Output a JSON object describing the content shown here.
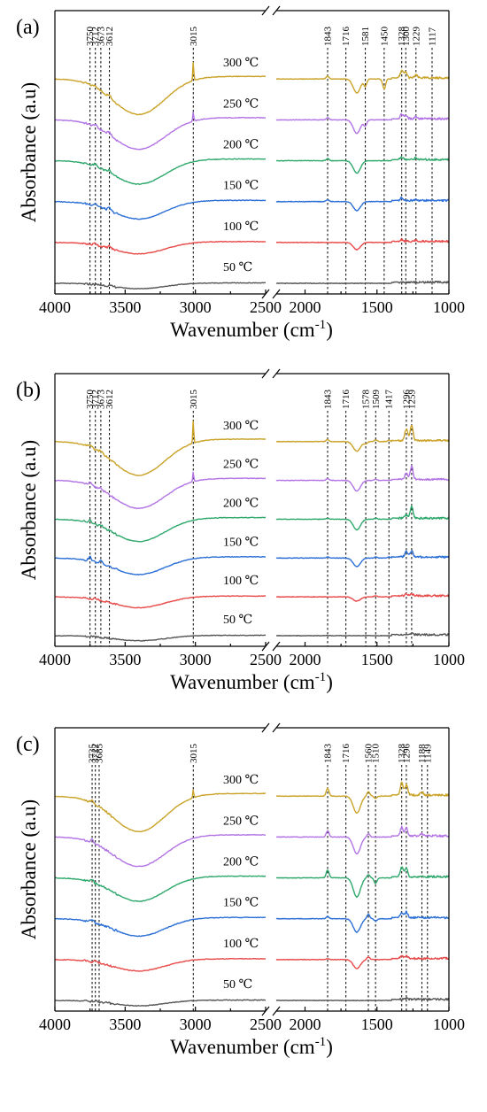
{
  "chart_data": [
    {
      "type": "line",
      "panel_label": "(a)",
      "xlabel": "Wavenumber (cm",
      "xlabel_sup": "-1",
      "xlabel_close": ")",
      "ylabel": "Absorbance (a.u)",
      "x_axis": "reversed, broken between 2500 and 2200",
      "x_segments": [
        [
          4000,
          2500
        ],
        [
          2200,
          1000
        ]
      ],
      "x_ticks": [
        4000,
        3500,
        3000,
        2500,
        2000,
        1500,
        1000
      ],
      "x_tick_labels": [
        "4000",
        "3500",
        "3000",
        "2500",
        "2000",
        "1500",
        "1000"
      ],
      "grid": false,
      "legend": "inline labels",
      "peak_labels": [
        3750,
        3712,
        3673,
        3612,
        3015,
        1843,
        1716,
        1581,
        1450,
        1328,
        1300,
        1229,
        1117
      ],
      "series": [
        {
          "name": "300 ℃",
          "color": "#c9a227",
          "offset": 5,
          "peaks": [
            [
              3712,
              0.1
            ],
            [
              3612,
              0.14
            ],
            [
              3015,
              0.85
            ],
            [
              1843,
              0.12
            ],
            [
              1640,
              -0.62
            ],
            [
              1581,
              -0.3
            ],
            [
              1450,
              -0.45
            ],
            [
              1328,
              0.32
            ],
            [
              1300,
              0.25
            ],
            [
              1229,
              0.12
            ]
          ]
        },
        {
          "name": "250 ℃",
          "color": "#b274e4",
          "offset": 4,
          "peaks": [
            [
              3712,
              0.1
            ],
            [
              3612,
              0.14
            ],
            [
              3015,
              0.42
            ],
            [
              1843,
              0.1
            ],
            [
              1640,
              -0.6
            ],
            [
              1581,
              -0.25
            ],
            [
              1328,
              0.2
            ],
            [
              1300,
              0.15
            ],
            [
              1229,
              0.1
            ]
          ]
        },
        {
          "name": "200 ℃",
          "color": "#2ea86b",
          "offset": 3,
          "peaks": [
            [
              3712,
              0.1
            ],
            [
              3612,
              0.12
            ],
            [
              1843,
              0.1
            ],
            [
              1640,
              -0.55
            ],
            [
              1328,
              0.12
            ],
            [
              1229,
              0.08
            ]
          ]
        },
        {
          "name": "150 ℃",
          "color": "#2b6fd6",
          "offset": 2,
          "peaks": [
            [
              3712,
              0.1
            ],
            [
              3612,
              0.12
            ],
            [
              1843,
              0.08
            ],
            [
              1640,
              -0.4
            ],
            [
              1328,
              0.12
            ],
            [
              1229,
              0.06
            ]
          ]
        },
        {
          "name": "100 ℃",
          "color": "#e84a4a",
          "offset": 1,
          "peaks": [
            [
              3712,
              0.1
            ],
            [
              3612,
              0.1
            ],
            [
              1640,
              -0.32
            ],
            [
              1328,
              0.08
            ],
            [
              1229,
              0.05
            ]
          ]
        },
        {
          "name": "50 ℃",
          "color": "#555555",
          "offset": 0,
          "peaks": [
            [
              3612,
              0.02
            ]
          ]
        }
      ]
    },
    {
      "type": "line",
      "panel_label": "(b)",
      "xlabel": "Wavenumber (cm",
      "xlabel_sup": "-1",
      "xlabel_close": ")",
      "ylabel": "Absorbance (a.u)",
      "x_axis": "reversed, broken between 2500 and 2200",
      "x_segments": [
        [
          4000,
          2500
        ],
        [
          2200,
          1000
        ]
      ],
      "x_ticks": [
        4000,
        3500,
        3000,
        2500,
        2000,
        1500,
        1000
      ],
      "x_tick_labels": [
        "4000",
        "3500",
        "3000",
        "2500",
        "2000",
        "1500",
        "1000"
      ],
      "grid": false,
      "legend": "inline labels",
      "peak_labels": [
        3750,
        3712,
        3673,
        3612,
        3015,
        1843,
        1716,
        1578,
        1509,
        1417,
        1296,
        1259
      ],
      "series": [
        {
          "name": "300 ℃",
          "color": "#c9a227",
          "offset": 5,
          "peaks": [
            [
              3750,
              0.12
            ],
            [
              3673,
              0.1
            ],
            [
              3015,
              1.05
            ],
            [
              1843,
              0.1
            ],
            [
              1640,
              -0.45
            ],
            [
              1578,
              -0.1
            ],
            [
              1509,
              0.08
            ],
            [
              1417,
              0.06
            ],
            [
              1296,
              0.55
            ],
            [
              1259,
              0.7
            ]
          ]
        },
        {
          "name": "250 ℃",
          "color": "#b274e4",
          "offset": 4,
          "peaks": [
            [
              3750,
              0.1
            ],
            [
              3673,
              0.1
            ],
            [
              3015,
              0.45
            ],
            [
              1843,
              0.08
            ],
            [
              1640,
              -0.5
            ],
            [
              1509,
              0.06
            ],
            [
              1296,
              0.3
            ],
            [
              1259,
              0.6
            ]
          ]
        },
        {
          "name": "200 ℃",
          "color": "#2ea86b",
          "offset": 3,
          "peaks": [
            [
              3750,
              0.12
            ],
            [
              3673,
              0.08
            ],
            [
              1843,
              0.05
            ],
            [
              1640,
              -0.5
            ],
            [
              1509,
              0.05
            ],
            [
              1296,
              0.15
            ],
            [
              1259,
              0.55
            ]
          ]
        },
        {
          "name": "150 ℃",
          "color": "#2b6fd6",
          "offset": 2,
          "peaks": [
            [
              3750,
              0.18
            ],
            [
              3673,
              0.12
            ],
            [
              1843,
              0.05
            ],
            [
              1640,
              -0.4
            ],
            [
              1509,
              0.05
            ],
            [
              1417,
              0.05
            ],
            [
              1296,
              0.25
            ],
            [
              1259,
              0.3
            ]
          ]
        },
        {
          "name": "100 ℃",
          "color": "#e84a4a",
          "offset": 1,
          "peaks": [
            [
              3712,
              0.06
            ],
            [
              1640,
              -0.2
            ],
            [
              1509,
              0.05
            ],
            [
              1296,
              0.1
            ],
            [
              1259,
              0.08
            ]
          ]
        },
        {
          "name": "50 ℃",
          "color": "#555555",
          "offset": 0,
          "peaks": [
            [
              3712,
              0.03
            ],
            [
              1259,
              0.05
            ]
          ]
        }
      ]
    },
    {
      "type": "line",
      "panel_label": "(c)",
      "xlabel": "Wavenumber (cm",
      "xlabel_sup": "-1",
      "xlabel_close": ")",
      "ylabel": "Absorbance (a.u)",
      "x_axis": "reversed, broken between 2500 and 2200",
      "x_segments": [
        [
          4000,
          2500
        ],
        [
          2200,
          1000
        ]
      ],
      "x_ticks": [
        4000,
        3500,
        3000,
        2500,
        2000,
        1500,
        1000
      ],
      "x_tick_labels": [
        "4000",
        "3500",
        "3000",
        "2500",
        "2000",
        "1500",
        "1000"
      ],
      "grid": false,
      "legend": "inline labels",
      "peak_labels": [
        3735,
        3712,
        3685,
        3015,
        1843,
        1716,
        1560,
        1510,
        1328,
        1296,
        1188,
        1149
      ],
      "series": [
        {
          "name": "300 ℃",
          "color": "#c9a227",
          "offset": 5,
          "peaks": [
            [
              3735,
              0.12
            ],
            [
              3015,
              0.35
            ],
            [
              1843,
              0.35
            ],
            [
              1640,
              -0.75
            ],
            [
              1560,
              0.2
            ],
            [
              1510,
              -0.1
            ],
            [
              1328,
              0.55
            ],
            [
              1296,
              0.45
            ],
            [
              1188,
              0.15
            ]
          ]
        },
        {
          "name": "250 ℃",
          "color": "#b274e4",
          "offset": 4,
          "peaks": [
            [
              3735,
              0.12
            ],
            [
              1843,
              0.28
            ],
            [
              1640,
              -0.75
            ],
            [
              1560,
              0.15
            ],
            [
              1328,
              0.4
            ],
            [
              1296,
              0.35
            ],
            [
              1188,
              0.1
            ]
          ]
        },
        {
          "name": "200 ℃",
          "color": "#2ea86b",
          "offset": 3,
          "peaks": [
            [
              3735,
              0.12
            ],
            [
              1843,
              0.35
            ],
            [
              1640,
              -0.85
            ],
            [
              1560,
              0.15
            ],
            [
              1510,
              -0.25
            ],
            [
              1328,
              0.45
            ],
            [
              1296,
              0.4
            ]
          ]
        },
        {
          "name": "150 ℃",
          "color": "#2b6fd6",
          "offset": 2,
          "peaks": [
            [
              3735,
              0.12
            ],
            [
              1843,
              0.1
            ],
            [
              1640,
              -0.6
            ],
            [
              1560,
              0.2
            ],
            [
              1510,
              -0.1
            ],
            [
              1328,
              0.25
            ],
            [
              1296,
              0.25
            ]
          ]
        },
        {
          "name": "100 ℃",
          "color": "#e84a4a",
          "offset": 1,
          "peaks": [
            [
              3712,
              0.08
            ],
            [
              1843,
              0.04
            ],
            [
              1640,
              -0.4
            ],
            [
              1560,
              0.12
            ],
            [
              1328,
              0.12
            ],
            [
              1296,
              0.1
            ]
          ]
        },
        {
          "name": "50 ℃",
          "color": "#555555",
          "offset": 0,
          "peaks": [
            [
              3712,
              0.03
            ],
            [
              1296,
              0.04
            ]
          ]
        }
      ]
    }
  ]
}
